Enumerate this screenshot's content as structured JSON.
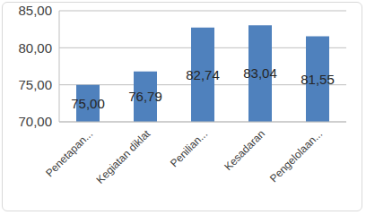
{
  "chart_data": {
    "type": "bar",
    "categories": [
      "Penetapan...",
      "Kegiatan diklat",
      "Penilian...",
      "Kesadaran",
      "Pengelolaan..."
    ],
    "values": [
      75.0,
      76.79,
      82.74,
      83.04,
      81.55
    ],
    "value_labels": [
      "75,00",
      "76,79",
      "82,74",
      "83,04",
      "81,55"
    ],
    "data_labels": true,
    "color": "#4f81bd",
    "ylim": [
      70,
      85
    ],
    "yticks": [
      {
        "value": 70,
        "label": "70,00"
      },
      {
        "value": 75,
        "label": "75,00"
      },
      {
        "value": 80,
        "label": "80,00"
      },
      {
        "value": 85,
        "label": "85,00"
      }
    ],
    "grid": true
  }
}
